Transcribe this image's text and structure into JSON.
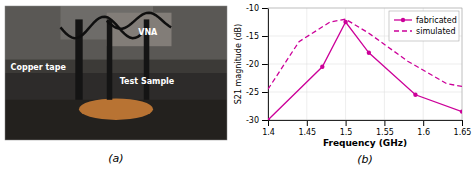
{
  "chart_data": [
    {
      "type": "image",
      "title": "(a)",
      "annotations": [
        "Copper tape",
        "Test Sample",
        "VNA"
      ]
    },
    {
      "type": "line",
      "title": "(b)",
      "xlabel": "Frequency (GHz)",
      "ylabel": "S21 magnitude (dB)",
      "xlim": [
        1.4,
        1.65
      ],
      "ylim": [
        -30,
        -10
      ],
      "xticks": [
        1.4,
        1.45,
        1.5,
        1.55,
        1.6,
        1.65
      ],
      "yticks": [
        -30,
        -25,
        -20,
        -15,
        -10
      ],
      "grid": true,
      "legend": "upper right",
      "series": [
        {
          "name": "fabricated",
          "color": "#CC0099",
          "line_style": "solid",
          "marker": "circle",
          "x": [
            1.4,
            1.47,
            1.5,
            1.53,
            1.59,
            1.65
          ],
          "values": [
            -30.0,
            -20.5,
            -12.5,
            -18.0,
            -25.5,
            -28.5
          ]
        },
        {
          "name": "simulated",
          "color": "#CC0099",
          "line_style": "dashed",
          "marker": "none",
          "x": [
            1.4,
            1.44,
            1.48,
            1.5,
            1.53,
            1.58,
            1.63,
            1.65
          ],
          "values": [
            -24.5,
            -16.0,
            -12.5,
            -12.0,
            -14.5,
            -19.5,
            -23.5,
            -24.0
          ]
        }
      ]
    }
  ]
}
